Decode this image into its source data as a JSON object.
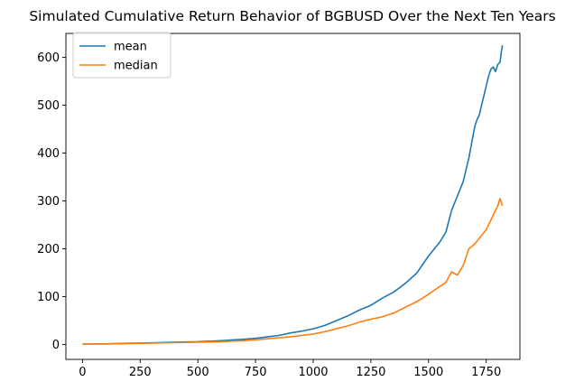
{
  "chart_data": {
    "type": "line",
    "title": "Simulated Cumulative Return Behavior of BGBUSD Over the Next Ten Years",
    "xlabel": "",
    "ylabel": "",
    "xlim": [
      -72,
      1896
    ],
    "ylim": [
      -31,
      650
    ],
    "x_ticks": [
      0,
      250,
      500,
      750,
      1000,
      1250,
      1500,
      1750
    ],
    "y_ticks": [
      0,
      100,
      200,
      300,
      400,
      500,
      600
    ],
    "grid": false,
    "legend_position": "top-left",
    "series": [
      {
        "name": "mean",
        "color": "#1f77b4",
        "points": [
          [
            0,
            1
          ],
          [
            100,
            1.5
          ],
          [
            200,
            2.5
          ],
          [
            300,
            3.5
          ],
          [
            400,
            5
          ],
          [
            500,
            6
          ],
          [
            600,
            8
          ],
          [
            700,
            11
          ],
          [
            750,
            13
          ],
          [
            800,
            16
          ],
          [
            850,
            19
          ],
          [
            900,
            24
          ],
          [
            950,
            28
          ],
          [
            1000,
            33
          ],
          [
            1050,
            40
          ],
          [
            1100,
            50
          ],
          [
            1150,
            60
          ],
          [
            1200,
            72
          ],
          [
            1250,
            82
          ],
          [
            1300,
            97
          ],
          [
            1350,
            110
          ],
          [
            1400,
            128
          ],
          [
            1450,
            150
          ],
          [
            1500,
            185
          ],
          [
            1550,
            215
          ],
          [
            1575,
            235
          ],
          [
            1600,
            280
          ],
          [
            1625,
            310
          ],
          [
            1650,
            340
          ],
          [
            1675,
            390
          ],
          [
            1700,
            455
          ],
          [
            1710,
            470
          ],
          [
            1720,
            480
          ],
          [
            1740,
            520
          ],
          [
            1760,
            560
          ],
          [
            1770,
            575
          ],
          [
            1780,
            580
          ],
          [
            1790,
            570
          ],
          [
            1800,
            585
          ],
          [
            1810,
            590
          ],
          [
            1815,
            610
          ],
          [
            1820,
            625
          ]
        ]
      },
      {
        "name": "median",
        "color": "#ff7f0e",
        "points": [
          [
            0,
            1
          ],
          [
            100,
            1.2
          ],
          [
            200,
            2
          ],
          [
            300,
            3
          ],
          [
            400,
            4
          ],
          [
            500,
            5
          ],
          [
            600,
            6
          ],
          [
            700,
            8
          ],
          [
            750,
            10
          ],
          [
            800,
            12
          ],
          [
            850,
            14
          ],
          [
            900,
            16
          ],
          [
            950,
            19
          ],
          [
            1000,
            22
          ],
          [
            1050,
            27
          ],
          [
            1100,
            33
          ],
          [
            1150,
            39
          ],
          [
            1200,
            47
          ],
          [
            1250,
            53
          ],
          [
            1300,
            58
          ],
          [
            1350,
            66
          ],
          [
            1400,
            78
          ],
          [
            1450,
            90
          ],
          [
            1500,
            105
          ],
          [
            1550,
            122
          ],
          [
            1575,
            130
          ],
          [
            1600,
            152
          ],
          [
            1625,
            145
          ],
          [
            1650,
            165
          ],
          [
            1675,
            200
          ],
          [
            1700,
            210
          ],
          [
            1725,
            225
          ],
          [
            1750,
            240
          ],
          [
            1775,
            265
          ],
          [
            1790,
            280
          ],
          [
            1800,
            290
          ],
          [
            1810,
            305
          ],
          [
            1820,
            290
          ]
        ]
      }
    ]
  }
}
